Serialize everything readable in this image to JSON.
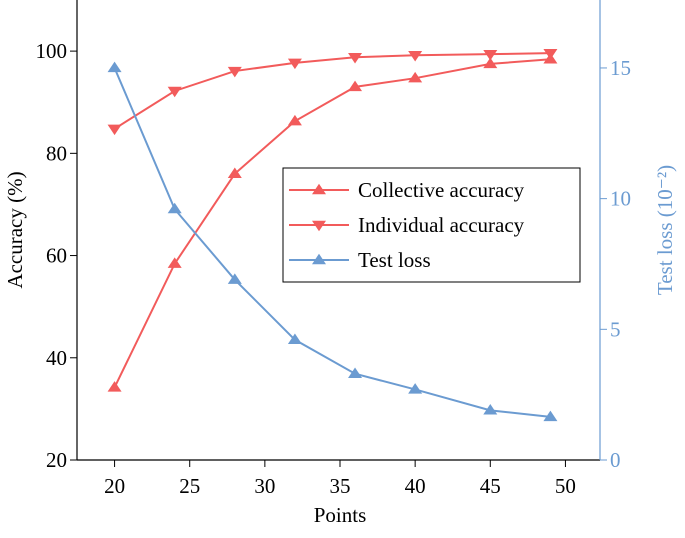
{
  "chart_data": {
    "type": "line",
    "x_label": "Points",
    "y_label": "Accuracy (%)",
    "y2_label": "Test loss (10⁻²)",
    "x": [
      20,
      24,
      28,
      32,
      36,
      40,
      45,
      49
    ],
    "series": [
      {
        "name": "Collective accuracy",
        "color": "#f25b5b",
        "marker": "triangle-up",
        "values": [
          34.2,
          58.4,
          76.0,
          86.3,
          93.0,
          94.7,
          97.5,
          98.4
        ]
      },
      {
        "name": "Individual accuracy",
        "color": "#f25b5b",
        "marker": "triangle-down",
        "values": [
          84.8,
          92.2,
          96.1,
          97.7,
          98.8,
          99.2,
          99.4,
          99.6
        ]
      },
      {
        "name": "Test loss",
        "color": "#6b9bd1",
        "marker": "triangle-up",
        "axis": "y2",
        "values": [
          15.0,
          9.6,
          6.9,
          4.6,
          3.3,
          2.7,
          1.9,
          1.65
        ]
      }
    ],
    "xlim": [
      17.5,
      52.3
    ],
    "xticks": [
      20,
      25,
      30,
      35,
      40,
      45,
      50
    ],
    "ylim": [
      20,
      110
    ],
    "yticks": [
      20,
      40,
      60,
      80,
      100
    ],
    "y2lim": [
      0,
      17.6
    ],
    "y2ticks": [
      0,
      5,
      10,
      15
    ],
    "y2_color": "#6b9bd1",
    "legend": "center-right"
  }
}
